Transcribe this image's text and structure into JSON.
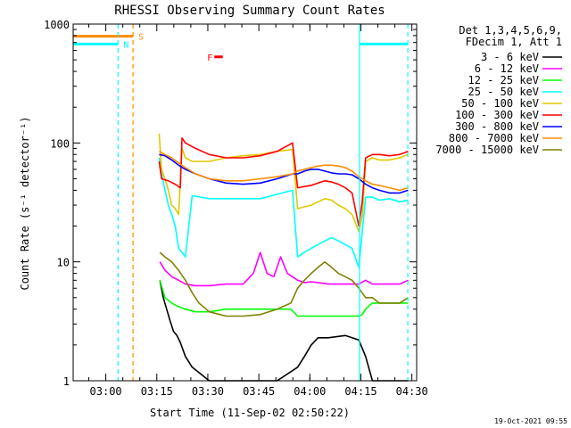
{
  "chart_data": {
    "type": "line",
    "title": "RHESSI Observing Summary Count Rates",
    "xlabel": "Start Time (11-Sep-02 02:50:22)",
    "ylabel": "Count Rate (s⁻¹ detector⁻¹)",
    "x_unit": "minutes since 02:50:22",
    "xlim": [
      0,
      101
    ],
    "ylim": [
      1,
      1000
    ],
    "y_scale": "log",
    "grid": false,
    "legend_position": "right",
    "x_ticks": [
      {
        "x": 9.6,
        "label": "03:00"
      },
      {
        "x": 24.6,
        "label": "03:15"
      },
      {
        "x": 39.6,
        "label": "03:30"
      },
      {
        "x": 54.6,
        "label": "03:45"
      },
      {
        "x": 69.6,
        "label": "04:00"
      },
      {
        "x": 84.6,
        "label": "04:15"
      },
      {
        "x": 99.6,
        "label": "04:30"
      }
    ],
    "y_ticks": [
      {
        "y": 1,
        "label": "1"
      },
      {
        "y": 10,
        "label": "10"
      },
      {
        "y": 100,
        "label": "100"
      },
      {
        "y": 1000,
        "label": "1000"
      }
    ],
    "legend_header": [
      "Det 1,3,4,5,6,9,",
      "FDecim 1, Att 1"
    ],
    "series": [
      {
        "name": "3 - 6 keV",
        "color": "#000000",
        "x": [
          25.5,
          26.5,
          27.5,
          28.5,
          29.5,
          30.5,
          31.5,
          33,
          35,
          40,
          50,
          60,
          66,
          68,
          70,
          72,
          75,
          80,
          84,
          86,
          88,
          90,
          93,
          96,
          98.5
        ],
        "y": [
          7,
          5,
          4,
          3.2,
          2.6,
          2.4,
          2.1,
          1.6,
          1.3,
          1,
          1,
          1,
          1.3,
          1.6,
          2,
          2.3,
          2.3,
          2.4,
          2.2,
          1.6,
          1,
          1,
          1,
          1,
          1
        ]
      },
      {
        "name": "6 - 12 keV",
        "color": "#ff00ff",
        "x": [
          25.5,
          27,
          29,
          31,
          33,
          36,
          40,
          45,
          50,
          53,
          55,
          57,
          59,
          61,
          63,
          66,
          68,
          70,
          72,
          75,
          80,
          84,
          86,
          88,
          90,
          93,
          96,
          98.5
        ],
        "y": [
          10,
          8.5,
          7.5,
          7,
          6.5,
          6.3,
          6.3,
          6.5,
          6.5,
          8,
          12,
          8,
          7.5,
          11,
          8,
          7,
          6.7,
          6.8,
          6.7,
          6.5,
          6.5,
          6.5,
          7,
          6.5,
          6.5,
          6.5,
          6.5,
          7
        ]
      },
      {
        "name": "12 - 25 keV",
        "color": "#00ff00",
        "x": [
          25.5,
          27,
          29,
          31,
          33,
          36,
          40,
          45,
          50,
          55,
          60,
          64,
          66,
          68,
          70,
          72,
          75,
          80,
          84,
          85,
          86,
          88,
          90,
          93,
          96,
          98.5
        ],
        "y": [
          7,
          5,
          4.5,
          4.2,
          4,
          3.8,
          3.8,
          4,
          4,
          4,
          4,
          4,
          3.5,
          3.5,
          3.5,
          3.5,
          3.5,
          3.5,
          3.5,
          3.6,
          4,
          4.5,
          4.5,
          4.5,
          4.5,
          4.5
        ]
      },
      {
        "name": "25 - 50 keV",
        "color": "#00ffff",
        "x": [
          25.3,
          26,
          27,
          28,
          29,
          30,
          31,
          33,
          35,
          40,
          45,
          50,
          55,
          60,
          64.5,
          66,
          68,
          70,
          72,
          74,
          76,
          78,
          80,
          82,
          84,
          86,
          88,
          90,
          93,
          96,
          98.5
        ],
        "y": [
          75,
          55,
          40,
          30,
          25,
          20,
          13,
          11,
          36,
          34,
          34,
          34,
          34,
          37,
          40,
          11,
          12,
          13,
          14,
          15,
          16,
          15,
          14,
          13,
          9,
          35,
          35,
          33,
          34,
          32,
          33
        ]
      },
      {
        "name": "50 - 100 keV",
        "color": "#e0c800",
        "x": [
          25.3,
          26,
          27,
          28,
          29,
          30,
          31,
          32,
          33,
          35,
          40,
          45,
          50,
          55,
          60,
          64.5,
          66,
          68,
          70,
          72,
          74,
          76,
          78,
          80,
          82,
          84,
          85,
          86,
          88,
          90,
          93,
          96,
          98.5
        ],
        "y": [
          120,
          60,
          50,
          40,
          30,
          28,
          25,
          90,
          75,
          70,
          70,
          75,
          78,
          80,
          85,
          88,
          28,
          29,
          30,
          32,
          34,
          33,
          30,
          28,
          25,
          18,
          24,
          70,
          75,
          72,
          72,
          75,
          80
        ]
      },
      {
        "name": "100 - 300 keV",
        "color": "#ff0000",
        "x": [
          25.3,
          26,
          28,
          30,
          31.5,
          32,
          33,
          36,
          40,
          45,
          50,
          55,
          60,
          64.5,
          66,
          68,
          70,
          72,
          74,
          76,
          78,
          80,
          82,
          84,
          85,
          86,
          88,
          90,
          93,
          96,
          98.5
        ],
        "y": [
          70,
          50,
          48,
          45,
          42,
          110,
          100,
          90,
          80,
          75,
          75,
          78,
          85,
          100,
          42,
          43,
          44,
          46,
          48,
          47,
          45,
          42,
          38,
          20,
          32,
          75,
          80,
          80,
          78,
          80,
          85
        ]
      },
      {
        "name": "300 - 800 keV",
        "color": "#0000ff",
        "x": [
          25.3,
          27,
          29,
          31,
          33,
          36,
          40,
          45,
          50,
          55,
          60,
          64.5,
          66,
          68,
          70,
          72,
          74,
          76,
          78,
          80,
          82,
          84,
          86,
          88,
          90,
          93,
          96,
          98.5
        ],
        "y": [
          80,
          78,
          72,
          65,
          60,
          55,
          50,
          46,
          45,
          46,
          50,
          55,
          55,
          58,
          60,
          60,
          58,
          56,
          55,
          55,
          54,
          50,
          45,
          42,
          40,
          38,
          38,
          40
        ]
      },
      {
        "name": "800 - 7000 keV",
        "color": "#ff8c00",
        "x": [
          25.3,
          27,
          29,
          31,
          33,
          36,
          40,
          45,
          50,
          55,
          60,
          64.5,
          66,
          68,
          70,
          72,
          74,
          76,
          78,
          80,
          82,
          84,
          86,
          88,
          90,
          93,
          96,
          98.5
        ],
        "y": [
          85,
          80,
          75,
          68,
          62,
          55,
          50,
          48,
          48,
          50,
          52,
          55,
          58,
          60,
          62,
          64,
          65,
          65,
          64,
          62,
          58,
          52,
          48,
          45,
          44,
          42,
          40,
          42
        ]
      },
      {
        "name": "7000 - 15000 keV",
        "color": "#808000",
        "x": [
          25.5,
          27,
          29,
          31,
          33,
          35,
          37,
          40,
          45,
          50,
          55,
          60,
          64,
          66,
          68,
          70,
          72,
          74,
          76,
          78,
          80,
          82,
          84,
          86,
          88,
          90,
          93,
          96,
          98.5
        ],
        "y": [
          12,
          11,
          10,
          8.5,
          7,
          5.5,
          4.5,
          3.8,
          3.5,
          3.5,
          3.6,
          4,
          4.5,
          6,
          7,
          8,
          9,
          10,
          9,
          8,
          7.5,
          7,
          6,
          5,
          5,
          4.5,
          4.5,
          4.5,
          5
        ]
      }
    ],
    "flag_lines": [
      {
        "name": "SAA",
        "label": "S",
        "color": "#ff8c00",
        "x_start": 0,
        "x_end": 17.6,
        "level": 790
      },
      {
        "name": "Night",
        "label": "N",
        "color": "#00ffff",
        "x_start": 0,
        "x_end": 13.2,
        "level": 680
      },
      {
        "name": "Night",
        "label": "",
        "color": "#00ffff",
        "x_start": 84.2,
        "x_end": 98.4,
        "level": 680
      },
      {
        "name": "Flare",
        "label": "F",
        "color": "#ff0000",
        "x_start": 41.5,
        "x_end": 44,
        "level": 530
      }
    ],
    "vertical_markers": [
      {
        "x": 13.2,
        "color": "#00ffff",
        "style": "dashed"
      },
      {
        "x": 17.6,
        "color": "#ff8c00",
        "style": "dashed"
      },
      {
        "x": 98.4,
        "color": "#00ffff",
        "style": "dashed"
      },
      {
        "x": 84.2,
        "color": "#00ffff",
        "style": "solid"
      }
    ]
  },
  "footer": {
    "timestamp": "19-Oct-2021 09:55"
  }
}
